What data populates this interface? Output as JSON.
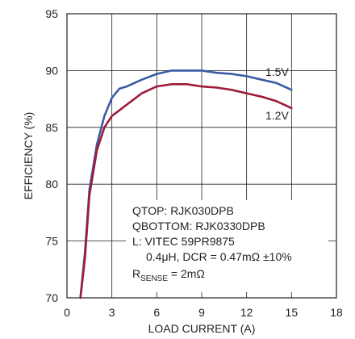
{
  "chart_data": {
    "type": "line",
    "xlabel": "LOAD CURRENT (A)",
    "ylabel": "EFFICIENCY (%)",
    "xlim": [
      0,
      18
    ],
    "ylim": [
      70,
      95
    ],
    "x_ticks": [
      "0",
      "3",
      "6",
      "9",
      "12",
      "15",
      "18"
    ],
    "y_ticks": [
      "70",
      "75",
      "80",
      "85",
      "90",
      "95"
    ],
    "grid": true,
    "series": [
      {
        "name": "1.5V",
        "color": "#3b5ba5",
        "points": [
          [
            0.9,
            70
          ],
          [
            1.2,
            74
          ],
          [
            1.5,
            79.5
          ],
          [
            2,
            83.5
          ],
          [
            2.5,
            86
          ],
          [
            3,
            87.6
          ],
          [
            3.5,
            88.4
          ],
          [
            4,
            88.6
          ],
          [
            5,
            89.2
          ],
          [
            6,
            89.7
          ],
          [
            7,
            90
          ],
          [
            8,
            90
          ],
          [
            9,
            90
          ],
          [
            10,
            89.8
          ],
          [
            11,
            89.7
          ],
          [
            12,
            89.5
          ],
          [
            13,
            89.2
          ],
          [
            14,
            88.9
          ],
          [
            15,
            88.3
          ]
        ]
      },
      {
        "name": "1.2V",
        "color": "#9e1c37",
        "points": [
          [
            0.9,
            70
          ],
          [
            1.2,
            73.5
          ],
          [
            1.5,
            79
          ],
          [
            2,
            83
          ],
          [
            2.5,
            85
          ],
          [
            3,
            86
          ],
          [
            3.5,
            86.5
          ],
          [
            4,
            87
          ],
          [
            5,
            88
          ],
          [
            6,
            88.6
          ],
          [
            7,
            88.8
          ],
          [
            8,
            88.8
          ],
          [
            9,
            88.6
          ],
          [
            10,
            88.5
          ],
          [
            11,
            88.3
          ],
          [
            12,
            88
          ],
          [
            13,
            87.7
          ],
          [
            14,
            87.3
          ],
          [
            15,
            86.7
          ]
        ]
      }
    ],
    "annotations": {
      "qtop": "QTOP: RJK030DPB",
      "qbottom": "QBOTTOM: RJK0330DPB",
      "inductor": "L: VITEC 59PR9875",
      "inductor_detail": "0.4μH, DCR = 0.47mΩ ±10%",
      "rsense_r": "R",
      "rsense_sub": "SENSE",
      "rsense_val": " = 2mΩ"
    }
  }
}
